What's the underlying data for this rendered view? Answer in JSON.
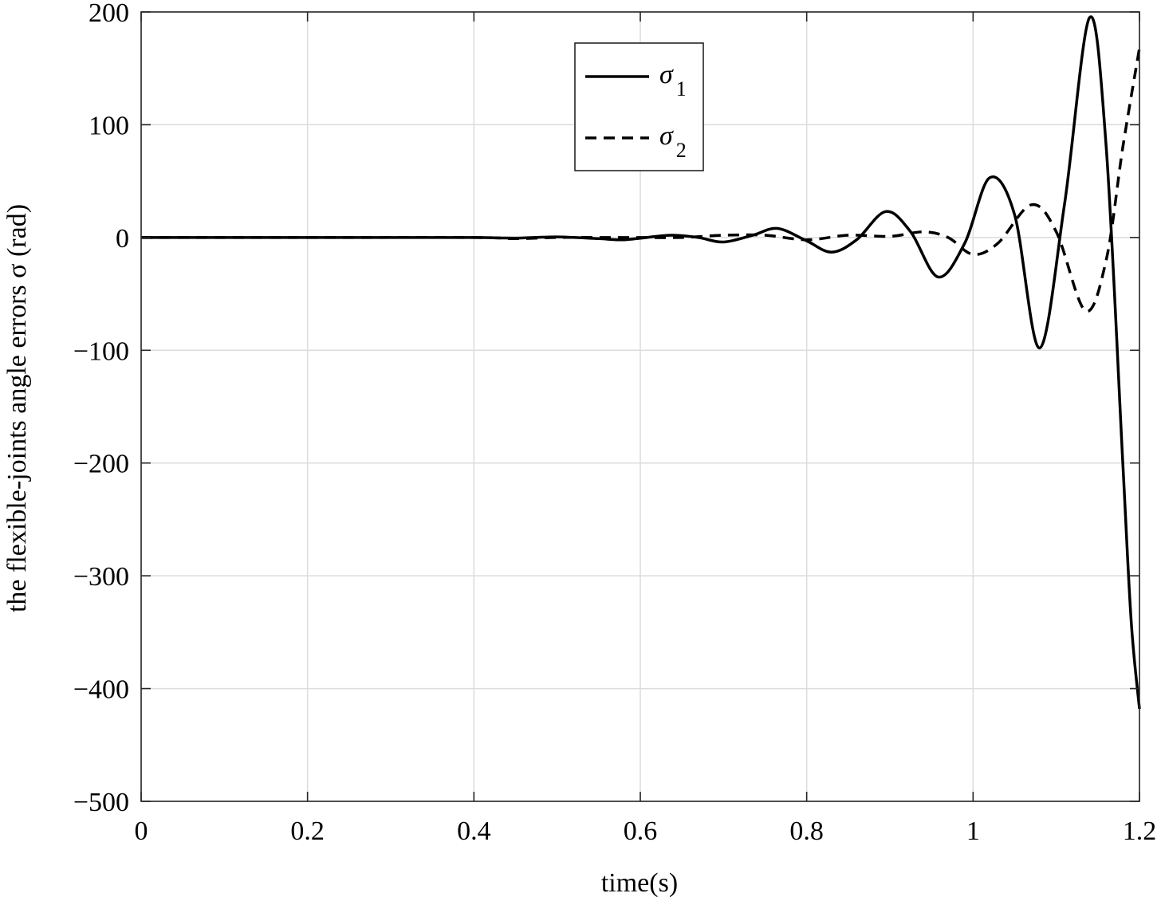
{
  "chart_data": {
    "type": "line",
    "title": "",
    "xlabel": "time(s)",
    "ylabel": "the flexible-joints angle errors σ (rad)",
    "xlim": [
      0,
      1.2
    ],
    "ylim": [
      -500,
      200
    ],
    "xticks": [
      0,
      0.2,
      0.4,
      0.6,
      0.8,
      1,
      1.2
    ],
    "xtick_labels": [
      "0",
      "0.2",
      "0.4",
      "0.6",
      "0.8",
      "1",
      "1.2"
    ],
    "yticks": [
      -500,
      -400,
      -300,
      -200,
      -100,
      0,
      100,
      200
    ],
    "ytick_labels": [
      "−500",
      "−400",
      "−300",
      "−200",
      "−100",
      "0",
      "100",
      "200"
    ],
    "grid": true,
    "legend_position": "top-center",
    "colors": {
      "line": "#000000",
      "grid": "#dcdcdc",
      "axis": "#262626"
    },
    "series": [
      {
        "name": "σ",
        "name_subscript": "1",
        "style": "solid",
        "x": [
          0,
          0.1,
          0.2,
          0.3,
          0.4,
          0.45,
          0.5,
          0.55,
          0.58,
          0.62,
          0.64,
          0.67,
          0.7,
          0.735,
          0.765,
          0.8,
          0.83,
          0.86,
          0.895,
          0.925,
          0.958,
          0.99,
          1.02,
          1.05,
          1.08,
          1.11,
          1.14,
          1.16,
          1.18,
          1.19,
          1.2
        ],
        "values": [
          0,
          0,
          0,
          0,
          0,
          -0.5,
          0.5,
          -1,
          -2,
          1,
          2,
          0,
          -4,
          2,
          8,
          -3,
          -13,
          -2,
          23,
          5,
          -35,
          -5,
          53,
          20,
          -98,
          30,
          195,
          80,
          -200,
          -340,
          -418
        ]
      },
      {
        "name": "σ",
        "name_subscript": "2",
        "style": "dashed",
        "x": [
          0,
          0.2,
          0.4,
          0.45,
          0.5,
          0.55,
          0.6,
          0.65,
          0.7,
          0.75,
          0.8,
          0.85,
          0.9,
          0.94,
          0.97,
          1.0,
          1.03,
          1.07,
          1.1,
          1.135,
          1.16,
          1.18,
          1.2
        ],
        "values": [
          0,
          0,
          0,
          -1,
          0,
          0,
          0,
          0,
          2,
          2,
          -2,
          2,
          1,
          5,
          0,
          -15,
          -5,
          29,
          5,
          -65,
          -20,
          80,
          168
        ]
      }
    ]
  }
}
